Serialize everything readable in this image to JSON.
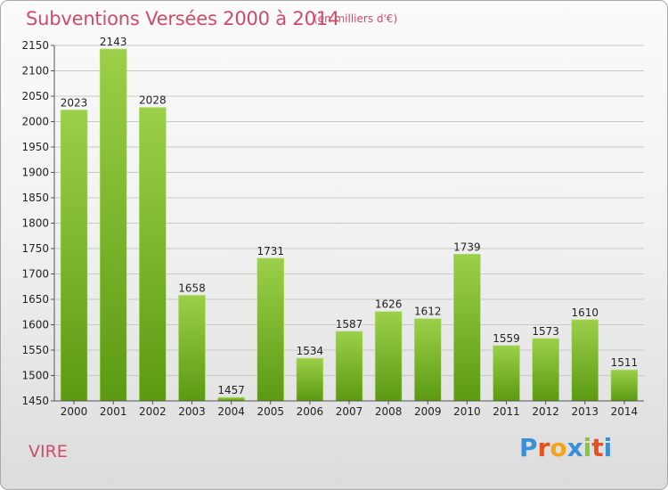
{
  "header": {
    "title": "Subventions Versées 2000 à 2014",
    "subtitle": "(en milliers d'€)"
  },
  "footer": {
    "commune": "VIRE",
    "logo_text": "Proxiti"
  },
  "colors": {
    "title": "#d04a6a",
    "bar_top": "#9ccf4a",
    "bar_bottom": "#5b9a12",
    "grid": "#c8c8c8",
    "logo_letters": [
      "#3a8fd6",
      "#e8501e",
      "#f2a41a",
      "#3a8fd6",
      "#8bc43f",
      "#e8501e",
      "#3a8fd6"
    ]
  },
  "chart_data": {
    "type": "bar",
    "title": "Subventions Versées 2000 à 2014",
    "subtitle": "(en milliers d'€)",
    "categories": [
      "2000",
      "2001",
      "2002",
      "2003",
      "2004",
      "2005",
      "2006",
      "2007",
      "2008",
      "2009",
      "2010",
      "2011",
      "2012",
      "2013",
      "2014"
    ],
    "values": [
      2023,
      2143,
      2028,
      1658,
      1457,
      1731,
      1534,
      1587,
      1626,
      1612,
      1739,
      1559,
      1573,
      1610,
      1511
    ],
    "ylim": [
      1450,
      2150
    ],
    "yticks": [
      1450,
      1500,
      1550,
      1600,
      1650,
      1700,
      1750,
      1800,
      1850,
      1900,
      1950,
      2000,
      2050,
      2100,
      2150
    ],
    "grid": true,
    "data_labels": true
  }
}
